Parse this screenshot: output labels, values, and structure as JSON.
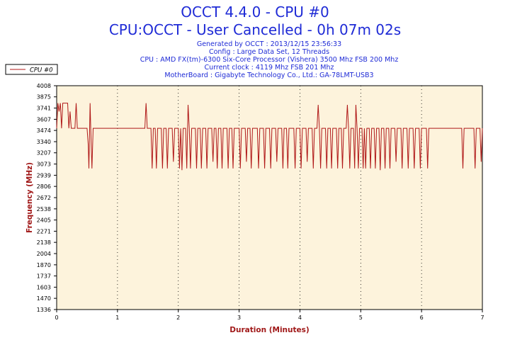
{
  "header": {
    "title": "OCCT 4.4.0 - CPU #0",
    "subtitle": "CPU:OCCT - User Cancelled - 0h 07m 02s",
    "info_lines": [
      "Generated by OCCT : 2013/12/15 23:56:33",
      "Config : Large Data Set, 12 Threads",
      "CPU : AMD FX(tm)-6300 Six-Core Processor (Vishera) 3500 Mhz FSB 200 Mhz",
      "Current clock : 4119 Mhz FSB 201 Mhz",
      "MotherBoard : Gigabyte Technology Co., Ltd.: GA-78LMT-USB3"
    ]
  },
  "colors": {
    "plot_bg": "#fdf3dc",
    "line": "#b01818",
    "axis_label": "#a01818",
    "title": "#1f2bd6",
    "grid": "#000000"
  },
  "chart_data": {
    "type": "line",
    "xlabel": "Duration (Minutes)",
    "ylabel": "Frequency (MHz)",
    "xlim": [
      0,
      7
    ],
    "ylim": [
      1336,
      4008
    ],
    "x_ticks": [
      "0",
      "1",
      "2",
      "3",
      "4",
      "5",
      "6",
      "7"
    ],
    "y_ticks": [
      "4008",
      "3875",
      "3741",
      "3607",
      "3474",
      "3340",
      "3207",
      "3073",
      "2939",
      "2806",
      "2672",
      "2538",
      "2405",
      "2271",
      "2138",
      "2004",
      "1870",
      "1737",
      "1603",
      "1470",
      "1336"
    ],
    "grid": "vertical dotted",
    "legend_position": "top-left",
    "series": [
      {
        "name": "CPU #0",
        "points": [
          [
            0.0,
            3500
          ],
          [
            0.02,
            3800
          ],
          [
            0.04,
            3700
          ],
          [
            0.06,
            3800
          ],
          [
            0.08,
            3500
          ],
          [
            0.1,
            3800
          ],
          [
            0.12,
            3800
          ],
          [
            0.18,
            3800
          ],
          [
            0.2,
            3500
          ],
          [
            0.22,
            3700
          ],
          [
            0.24,
            3500
          ],
          [
            0.28,
            3500
          ],
          [
            0.3,
            3500
          ],
          [
            0.32,
            3800
          ],
          [
            0.34,
            3500
          ],
          [
            0.5,
            3500
          ],
          [
            0.52,
            3300
          ],
          [
            0.53,
            3020
          ],
          [
            0.55,
            3800
          ],
          [
            0.56,
            3500
          ],
          [
            0.58,
            3020
          ],
          [
            0.6,
            3500
          ],
          [
            1.45,
            3500
          ],
          [
            1.47,
            3800
          ],
          [
            1.49,
            3500
          ],
          [
            1.55,
            3500
          ],
          [
            1.57,
            3020
          ],
          [
            1.59,
            3500
          ],
          [
            1.62,
            3500
          ],
          [
            1.64,
            3020
          ],
          [
            1.66,
            3500
          ],
          [
            1.72,
            3500
          ],
          [
            1.74,
            3020
          ],
          [
            1.76,
            3500
          ],
          [
            1.8,
            3500
          ],
          [
            1.82,
            3020
          ],
          [
            1.84,
            3500
          ],
          [
            1.9,
            3500
          ],
          [
            1.92,
            3100
          ],
          [
            1.94,
            3500
          ],
          [
            2.0,
            3500
          ],
          [
            2.02,
            3020
          ],
          [
            2.04,
            3500
          ],
          [
            2.06,
            3000
          ],
          [
            2.08,
            3500
          ],
          [
            2.12,
            3500
          ],
          [
            2.14,
            3020
          ],
          [
            2.16,
            3780
          ],
          [
            2.18,
            3500
          ],
          [
            2.2,
            3020
          ],
          [
            2.22,
            3500
          ],
          [
            2.28,
            3500
          ],
          [
            2.3,
            3020
          ],
          [
            2.32,
            3500
          ],
          [
            2.36,
            3500
          ],
          [
            2.38,
            3020
          ],
          [
            2.4,
            3500
          ],
          [
            2.45,
            3500
          ],
          [
            2.47,
            3020
          ],
          [
            2.49,
            3500
          ],
          [
            2.55,
            3500
          ],
          [
            2.57,
            3100
          ],
          [
            2.59,
            3500
          ],
          [
            2.62,
            3500
          ],
          [
            2.64,
            3020
          ],
          [
            2.66,
            3500
          ],
          [
            2.7,
            3500
          ],
          [
            2.72,
            3020
          ],
          [
            2.74,
            3500
          ],
          [
            2.8,
            3500
          ],
          [
            2.82,
            3020
          ],
          [
            2.84,
            3500
          ],
          [
            2.88,
            3500
          ],
          [
            2.9,
            3020
          ],
          [
            2.92,
            3500
          ],
          [
            3.0,
            3500
          ],
          [
            3.02,
            3020
          ],
          [
            3.04,
            3500
          ],
          [
            3.1,
            3500
          ],
          [
            3.12,
            3100
          ],
          [
            3.14,
            3500
          ],
          [
            3.18,
            3500
          ],
          [
            3.2,
            3020
          ],
          [
            3.22,
            3500
          ],
          [
            3.3,
            3500
          ],
          [
            3.32,
            3020
          ],
          [
            3.34,
            3500
          ],
          [
            3.4,
            3500
          ],
          [
            3.42,
            3020
          ],
          [
            3.44,
            3500
          ],
          [
            3.5,
            3500
          ],
          [
            3.52,
            3020
          ],
          [
            3.54,
            3500
          ],
          [
            3.6,
            3500
          ],
          [
            3.62,
            3100
          ],
          [
            3.64,
            3500
          ],
          [
            3.7,
            3500
          ],
          [
            3.72,
            3020
          ],
          [
            3.74,
            3500
          ],
          [
            3.78,
            3500
          ],
          [
            3.8,
            3020
          ],
          [
            3.82,
            3500
          ],
          [
            3.9,
            3500
          ],
          [
            3.92,
            3020
          ],
          [
            3.94,
            3500
          ],
          [
            4.0,
            3500
          ],
          [
            4.02,
            3020
          ],
          [
            4.04,
            3500
          ],
          [
            4.1,
            3500
          ],
          [
            4.12,
            3100
          ],
          [
            4.14,
            3500
          ],
          [
            4.2,
            3500
          ],
          [
            4.22,
            3020
          ],
          [
            4.24,
            3500
          ],
          [
            4.28,
            3500
          ],
          [
            4.3,
            3780
          ],
          [
            4.32,
            3500
          ],
          [
            4.34,
            3020
          ],
          [
            4.36,
            3500
          ],
          [
            4.42,
            3500
          ],
          [
            4.44,
            3020
          ],
          [
            4.46,
            3500
          ],
          [
            4.5,
            3500
          ],
          [
            4.52,
            3020
          ],
          [
            4.54,
            3500
          ],
          [
            4.6,
            3500
          ],
          [
            4.62,
            3020
          ],
          [
            4.64,
            3500
          ],
          [
            4.68,
            3500
          ],
          [
            4.7,
            3020
          ],
          [
            4.72,
            3500
          ],
          [
            4.76,
            3500
          ],
          [
            4.78,
            3780
          ],
          [
            4.8,
            3500
          ],
          [
            4.82,
            3020
          ],
          [
            4.84,
            3500
          ],
          [
            4.88,
            3500
          ],
          [
            4.9,
            3020
          ],
          [
            4.92,
            3780
          ],
          [
            4.94,
            3500
          ],
          [
            4.96,
            3020
          ],
          [
            4.98,
            3500
          ],
          [
            5.02,
            3500
          ],
          [
            5.04,
            3020
          ],
          [
            5.06,
            3500
          ],
          [
            5.08,
            3020
          ],
          [
            5.1,
            3500
          ],
          [
            5.14,
            3500
          ],
          [
            5.16,
            3020
          ],
          [
            5.18,
            3500
          ],
          [
            5.22,
            3500
          ],
          [
            5.24,
            3020
          ],
          [
            5.26,
            3500
          ],
          [
            5.3,
            3500
          ],
          [
            5.32,
            3000
          ],
          [
            5.34,
            3500
          ],
          [
            5.38,
            3500
          ],
          [
            5.4,
            3020
          ],
          [
            5.42,
            3500
          ],
          [
            5.46,
            3500
          ],
          [
            5.48,
            3020
          ],
          [
            5.5,
            3500
          ],
          [
            5.56,
            3500
          ],
          [
            5.58,
            3100
          ],
          [
            5.6,
            3500
          ],
          [
            5.66,
            3500
          ],
          [
            5.68,
            3020
          ],
          [
            5.7,
            3500
          ],
          [
            5.76,
            3500
          ],
          [
            5.78,
            3020
          ],
          [
            5.8,
            3500
          ],
          [
            5.86,
            3500
          ],
          [
            5.88,
            3020
          ],
          [
            5.9,
            3500
          ],
          [
            5.96,
            3500
          ],
          [
            5.98,
            3020
          ],
          [
            6.0,
            3500
          ],
          [
            6.08,
            3500
          ],
          [
            6.1,
            3020
          ],
          [
            6.12,
            3500
          ],
          [
            6.66,
            3500
          ],
          [
            6.68,
            3020
          ],
          [
            6.7,
            3500
          ],
          [
            6.86,
            3500
          ],
          [
            6.88,
            3020
          ],
          [
            6.9,
            3500
          ],
          [
            6.96,
            3500
          ],
          [
            6.98,
            3100
          ],
          [
            7.0,
            3500
          ]
        ]
      }
    ]
  }
}
